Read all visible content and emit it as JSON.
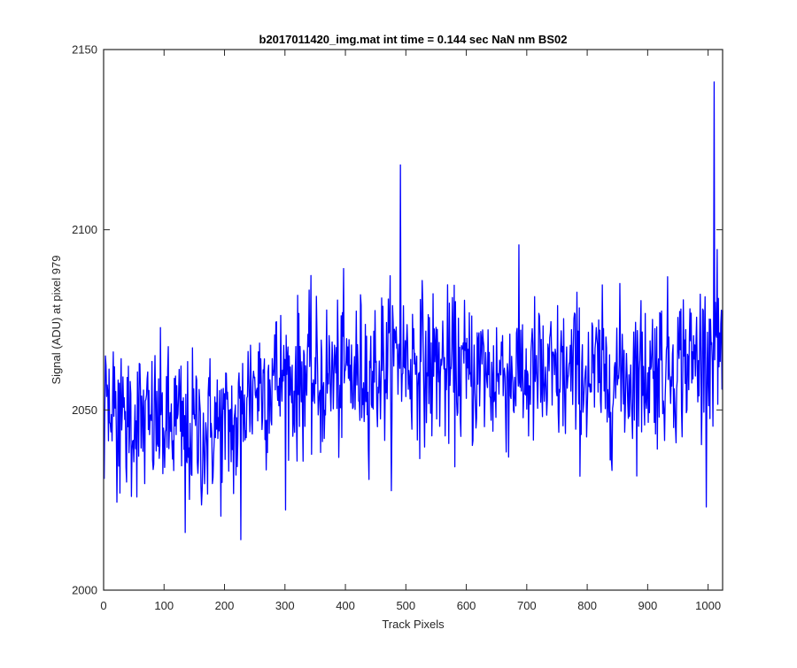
{
  "chart_data": {
    "type": "line",
    "title": "b2017011420_img.mat int time = 0.144 sec  NaN nm BS02",
    "xlabel": "Track Pixels",
    "ylabel": "Signal (ADU) at pixel 979",
    "xlim": [
      0,
      1024
    ],
    "ylim": [
      2000,
      2150
    ],
    "xticks": [
      0,
      100,
      200,
      300,
      400,
      500,
      600,
      700,
      800,
      900,
      1000
    ],
    "yticks": [
      2000,
      2050,
      2100,
      2150
    ],
    "grid": false,
    "line_color": "#0000ff",
    "series": [
      {
        "x": [
          0,
          10,
          20,
          30,
          40,
          50,
          60,
          70,
          80,
          90,
          100,
          110,
          120,
          130,
          140,
          150,
          160,
          170,
          180,
          190,
          200,
          210,
          220,
          230,
          240,
          250,
          260,
          270,
          280,
          290,
          300,
          310,
          320,
          330,
          340,
          350,
          360,
          370,
          380,
          390,
          400,
          410,
          420,
          430,
          440,
          450,
          460,
          470,
          480,
          490,
          500,
          510,
          520,
          530,
          540,
          550,
          560,
          570,
          580,
          590,
          600,
          610,
          620,
          630,
          640,
          650,
          660,
          670,
          680,
          690,
          700,
          710,
          720,
          730,
          740,
          750,
          760,
          770,
          780,
          790,
          800,
          810,
          820,
          830,
          840,
          850,
          860,
          870,
          880,
          890,
          900,
          910,
          920,
          930,
          940,
          950,
          960,
          970,
          980,
          990,
          1000,
          1010,
          1020,
          1024
        ],
        "y": [
          2048,
          2047,
          2045,
          2044,
          2046,
          2048,
          2047,
          2045,
          2046,
          2047,
          2046,
          2045,
          2047,
          2044,
          2043,
          2045,
          2044,
          2042,
          2046,
          2045,
          2044,
          2046,
          2043,
          2052,
          2055,
          2057,
          2058,
          2056,
          2060,
          2058,
          2059,
          2057,
          2058,
          2060,
          2059,
          2058,
          2057,
          2059,
          2060,
          2058,
          2061,
          2060,
          2059,
          2062,
          2061,
          2060,
          2063,
          2062,
          2064,
          2066,
          2064,
          2063,
          2065,
          2062,
          2061,
          2063,
          2062,
          2060,
          2061,
          2062,
          2059,
          2061,
          2060,
          2062,
          2058,
          2060,
          2061,
          2059,
          2060,
          2062,
          2058,
          2059,
          2060,
          2057,
          2058,
          2059,
          2060,
          2058,
          2061,
          2059,
          2060,
          2058,
          2061,
          2057,
          2060,
          2059,
          2061,
          2058,
          2062,
          2060,
          2061,
          2062,
          2063,
          2061,
          2064,
          2062,
          2065,
          2063,
          2064,
          2066,
          2065,
          2071,
          2068,
          2065
        ]
      }
    ],
    "annotations": [
      {
        "x": 135,
        "y": 2016
      },
      {
        "x": 227,
        "y": 2014
      },
      {
        "x": 491,
        "y": 2118
      },
      {
        "x": 1010,
        "y": 2141
      }
    ]
  }
}
